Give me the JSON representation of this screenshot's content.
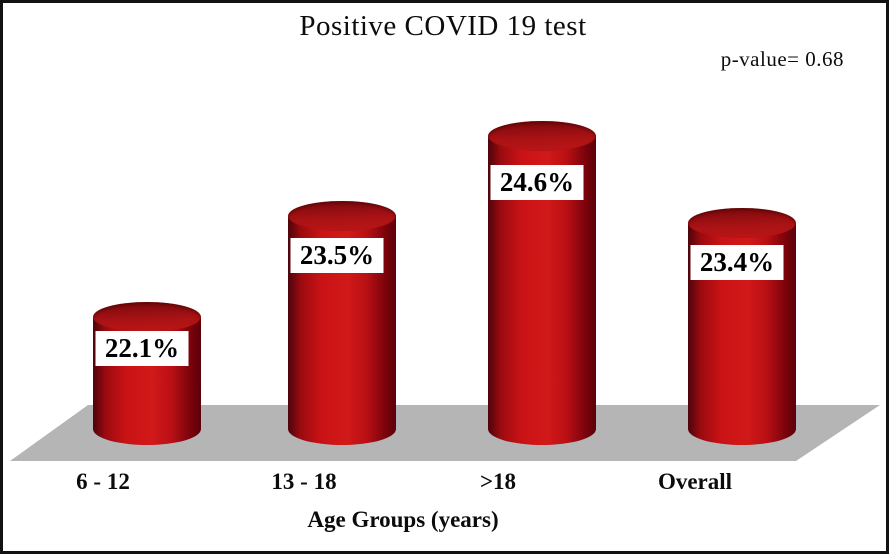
{
  "chart_data": {
    "type": "bar",
    "style": "3d-cylinder",
    "title": "Positive COVID 19 test",
    "annotation": "p-value= 0.68",
    "categories": [
      "6 - 12",
      "13 - 18",
      ">18",
      "Overall"
    ],
    "values": [
      22.1,
      23.5,
      24.6,
      23.4
    ],
    "value_labels": [
      "22.1%",
      "23.5%",
      "24.6%",
      "23.4%"
    ],
    "xlabel": "Age Groups (years)",
    "ylabel": "",
    "legend": "none",
    "grid": false,
    "y_axis_visible": false,
    "colors": {
      "bar": "#c41114",
      "bar_top": "#a81214",
      "floor": "#b5b5b5",
      "label_box_bg": "#ffffff",
      "text": "#000000",
      "frame_border": "#121212"
    }
  }
}
